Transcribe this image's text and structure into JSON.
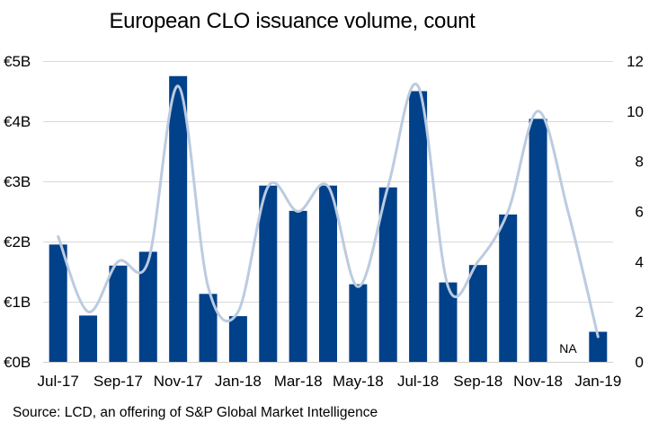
{
  "chart_data": {
    "type": "bar",
    "title": "European CLO issuance volume, count",
    "source": "Source: LCD, an offering of S&P Global Market Intelligence",
    "categories": [
      "Jul-17",
      "Aug-17",
      "Sep-17",
      "Oct-17",
      "Nov-17",
      "Dec-17",
      "Jan-18",
      "Feb-18",
      "Mar-18",
      "Apr-18",
      "May-18",
      "Jun-18",
      "Jul-18",
      "Aug-18",
      "Sep-18",
      "Oct-18",
      "Nov-18",
      "Dec-18",
      "Jan-19"
    ],
    "x_tick_labels": [
      "Jul-17",
      "Sep-17",
      "Nov-17",
      "Jan-18",
      "Mar-18",
      "May-18",
      "Jul-18",
      "Sep-18",
      "Nov-18",
      "Jan-19"
    ],
    "series": [
      {
        "type": "bar",
        "axis": "left",
        "color": "#00418a",
        "values": [
          1.95,
          0.77,
          1.6,
          1.83,
          4.75,
          1.13,
          0.76,
          2.93,
          2.51,
          2.93,
          1.29,
          2.9,
          4.5,
          1.32,
          1.61,
          2.45,
          4.04,
          null,
          0.5
        ]
      },
      {
        "type": "line",
        "axis": "right",
        "color": "#bccbe0",
        "values": [
          5,
          2,
          4,
          4,
          11,
          3,
          2,
          7,
          6,
          7,
          3,
          7,
          11,
          3,
          4,
          6,
          10,
          6,
          1
        ]
      }
    ],
    "annotations": [
      {
        "category": "Dec-18",
        "text": "NA"
      }
    ],
    "y_left": {
      "min": 0,
      "max": 5,
      "ticks": [
        "€0B",
        "€1B",
        "€2B",
        "€3B",
        "€4B",
        "€5B"
      ]
    },
    "y_right": {
      "min": 0,
      "max": 12,
      "ticks": [
        "0",
        "2",
        "4",
        "6",
        "8",
        "10",
        "12"
      ]
    },
    "grid": true,
    "legend": "none"
  }
}
